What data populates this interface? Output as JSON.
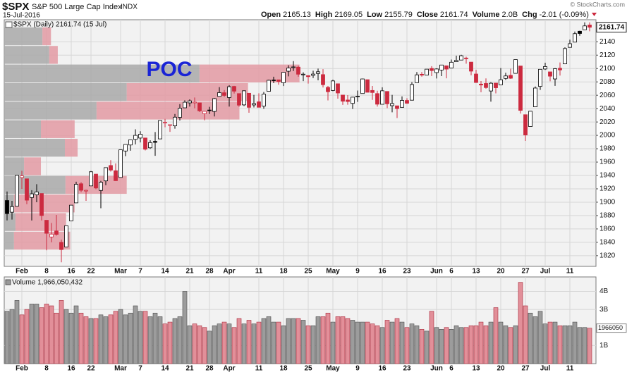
{
  "chart_data": {
    "type": "candlestick",
    "symbol": "$SPX",
    "name": "S&P 500 Large Cap Index",
    "exchange": "INDX",
    "date": "15-Jul-2016",
    "copyright": "© StockCharts.com",
    "quote": [
      {
        "label": "Open",
        "value": 2165.13
      },
      {
        "label": "High",
        "value": 2169.05
      },
      {
        "label": "Low",
        "value": 2155.79
      },
      {
        "label": "Close",
        "value": 2161.74
      },
      {
        "label": "Volume",
        "value": "2.0B"
      },
      {
        "label": "Chg",
        "value": "-2.01 (-0.09%)"
      }
    ],
    "legend": "$SPX (Daily) 2161.74 (15 Jul)",
    "annotation": "POC",
    "volume_legend": "Volume 1,966,050,432",
    "volume_last_label": "1966050",
    "up_color": "#000000",
    "down_color": "#cc2a3f",
    "grid": true,
    "categories": [
      null,
      null,
      null,
      "Feb",
      null,
      null,
      null,
      null,
      "8",
      null,
      null,
      null,
      null,
      "16",
      null,
      null,
      null,
      "22",
      null,
      null,
      null,
      null,
      null,
      "Mar",
      null,
      null,
      null,
      "7",
      null,
      null,
      null,
      null,
      "14",
      null,
      null,
      null,
      null,
      "21",
      null,
      null,
      null,
      "28",
      null,
      null,
      null,
      "Apr",
      null,
      null,
      null,
      null,
      null,
      "11",
      null,
      null,
      null,
      null,
      "18",
      null,
      null,
      null,
      null,
      "25",
      null,
      null,
      null,
      null,
      "May",
      null,
      null,
      null,
      null,
      "9",
      null,
      null,
      null,
      null,
      "16",
      null,
      null,
      null,
      null,
      "23",
      null,
      null,
      null,
      null,
      null,
      "Jun",
      null,
      null,
      "6",
      null,
      null,
      null,
      null,
      "13",
      null,
      null,
      null,
      null,
      "20",
      null,
      null,
      null,
      null,
      "27",
      null,
      null,
      null,
      "Jul",
      null,
      null,
      null,
      null,
      "11",
      null,
      null,
      null,
      null
    ],
    "open": [
      1902.5,
      1885,
      1894,
      1936.9,
      1935,
      1907,
      1911,
      1913,
      1873,
      1848,
      1857,
      1840,
      1833,
      1872,
      1899,
      1927.6,
      1916.7,
      1924.4,
      1942,
      1917.6,
      1931.9,
      1954.9,
      1947.1,
      1937,
      1976.6,
      1985.6,
      1994,
      1996,
      1996.1,
      1981.4,
      1990.97,
      1994.7,
      2019.3,
      2015.3,
      2014.2,
      2026.9,
      2041.2,
      2048.6,
      2048.6,
      2048.6,
      2032.5,
      2037.9,
      2035.8,
      2058.3,
      2063.8,
      2056.6,
      2073.2,
      2062.5,
      2045.6,
      2063,
      2045.5,
      2050.2,
      2043.7,
      2065.9,
      2082.9,
      2083.1,
      2078.8,
      2096,
      2101.5,
      2102.1,
      2091.5,
      2089.4,
      2089.8,
      2092.6,
      2090.9,
      2071.8,
      2067.2,
      2077.2,
      2060.3,
      2052.9,
      2047.8,
      2057.6,
      2062.6,
      2083.3,
      2067.2,
      2062.5,
      2046.5,
      2065.7,
      2044.4,
      2044.2,
      2041.9,
      2052.2,
      2052.6,
      2078.9,
      2091.4,
      2090.1,
      2100.1,
      2093.9,
      2097.7,
      2104.1,
      2100.8,
      2110.2,
      2112.7,
      2115.7,
      2109.6,
      2091.8,
      2076.7,
      2077.6,
      2066.4,
      2078.2,
      2075.6,
      2085.2,
      2089.8,
      2092.8,
      2103.8,
      2030.9,
      2013.2,
      2042.7,
      2073.2,
      2099.3,
      2095,
      2084.4,
      2100.4,
      2106.97,
      2131.7,
      2139.5,
      2155.8,
      2157.9,
      2165.13
    ],
    "high": [
      1916,
      1902,
      1940.2,
      1947,
      1935,
      1918,
      1927,
      1913,
      1873,
      1869,
      1881,
      1844,
      1864.8,
      1895.6,
      1930.7,
      1930,
      1918.8,
      1946.7,
      1942,
      1932,
      1951.8,
      1962.96,
      1958,
      1978.35,
      1986.5,
      1993.7,
      2009,
      2006.1,
      1996.1,
      1992.7,
      2005,
      2022.4,
      2024.6,
      2015.9,
      2032,
      2046.7,
      2052.4,
      2053.9,
      2056.6,
      2048.6,
      2036,
      2042.7,
      2055.9,
      2072.2,
      2067.9,
      2075.1,
      2074,
      2062.5,
      2067.3,
      2063,
      2060.6,
      2062.9,
      2065,
      2083.2,
      2087.8,
      2083.2,
      2094.7,
      2104.9,
      2111,
      2104.1,
      2094.3,
      2089.4,
      2096.7,
      2099.9,
      2099.1,
      2073.9,
      2083.4,
      2077.2,
      2060.3,
      2060.2,
      2057.7,
      2067,
      2084.9,
      2083.3,
      2073.9,
      2066.8,
      2071.9,
      2065.7,
      2060.6,
      2044.2,
      2058.4,
      2055.6,
      2079.7,
      2094.7,
      2094.7,
      2099.1,
      2103.5,
      2100.2,
      2105.3,
      2104.1,
      2113.4,
      2119.2,
      2120.6,
      2117.6,
      2109.6,
      2098.1,
      2081.3,
      2085.2,
      2079.6,
      2078.2,
      2100.7,
      2093.7,
      2099.7,
      2113.3,
      2103.8,
      2030.9,
      2036.1,
      2073.1,
      2098.9,
      2108.7,
      2095,
      2100.7,
      2109.1,
      2131.7,
      2143.2,
      2155.4,
      2156.5,
      2168.99,
      2169.05
    ],
    "low": [
      1872.8,
      1874,
      1894,
      1920,
      1897,
      1872.7,
      1900,
      1872.6,
      1828,
      1840,
      1850,
      1810,
      1833,
      1872,
      1899,
      1915,
      1902,
      1924.4,
      1919.4,
      1891,
      1925.4,
      1945.8,
      1931.8,
      1937,
      1968.8,
      1977,
      1986.5,
      1989.4,
      1977.4,
      1979.8,
      1969.4,
      1994.7,
      2012.1,
      2005.2,
      2010,
      2022.2,
      2041.2,
      2043.1,
      2040.6,
      2034.9,
      2022.5,
      2031.96,
      2028.3,
      2058.3,
      2057.5,
      2043.1,
      2062.6,
      2042.6,
      2043.8,
      2033.8,
      2041.7,
      2041.9,
      2039.7,
      2065.9,
      2078.1,
      2075.7,
      2073.7,
      2088.2,
      2096.3,
      2087.8,
      2081.2,
      2077.5,
      2085.8,
      2082.3,
      2071.6,
      2052.3,
      2066.1,
      2054.9,
      2045.6,
      2045.8,
      2039.5,
      2050,
      2062.6,
      2064.5,
      2053.1,
      2043.1,
      2046.5,
      2040.8,
      2034.5,
      2025.9,
      2041.9,
      2047.3,
      2052.6,
      2078.9,
      2087.9,
      2090.1,
      2088.7,
      2085.1,
      2088.6,
      2085.4,
      2100.8,
      2110.2,
      2112.7,
      2107.3,
      2089.9,
      2078.5,
      2064.6,
      2069.8,
      2050.4,
      2062.8,
      2075.6,
      2083,
      2084.4,
      2092.8,
      2032.6,
      1991.7,
      2013.2,
      2042.7,
      2068,
      2097.9,
      2080.9,
      2074,
      2089.4,
      2107,
      2131.7,
      2139.5,
      2149,
      2157.9,
      2155.79
    ],
    "close": [
      1882.95,
      1893.36,
      1940.24,
      1939.38,
      1903.03,
      1912.53,
      1915.45,
      1880.05,
      1853.44,
      1852.21,
      1851.86,
      1829.08,
      1864.78,
      1895.58,
      1926.82,
      1917.83,
      1917.78,
      1945.5,
      1921.27,
      1929.8,
      1951.7,
      1948.05,
      1932.23,
      1978.35,
      1986.45,
      1993.4,
      1999.99,
      2001.76,
      1979.26,
      1989.26,
      1989.57,
      2022.19,
      2019.64,
      2015.93,
      2027.22,
      2040.59,
      2049.58,
      2051.6,
      2049.8,
      2036.71,
      2035.94,
      2037.05,
      2055.01,
      2063.95,
      2059.74,
      2072.78,
      2066.13,
      2045.17,
      2066.66,
      2041.91,
      2047.6,
      2041.99,
      2061.72,
      2082.42,
      2082.78,
      2080.73,
      2094.34,
      2100.8,
      2102.4,
      2091.48,
      2091.58,
      2087.79,
      2091.7,
      2095.15,
      2075.81,
      2065.3,
      2081.43,
      2063.37,
      2051.12,
      2050.63,
      2057.14,
      2058.69,
      2084.39,
      2064.46,
      2064.11,
      2046.61,
      2066.66,
      2047.21,
      2047.63,
      2040.04,
      2052.32,
      2048.04,
      2076.06,
      2090.54,
      2090.1,
      2099.06,
      2096.95,
      2099.33,
      2105.26,
      2099.13,
      2109.41,
      2112.13,
      2119.12,
      2115.48,
      2096.07,
      2079.06,
      2075.32,
      2071.5,
      2077.99,
      2071.22,
      2083.25,
      2088.9,
      2085.45,
      2113.32,
      2037.41,
      2000.54,
      2036.09,
      2070.77,
      2098.86,
      2102.95,
      2088.55,
      2099.73,
      2097.9,
      2129.9,
      2137.16,
      2152.14,
      2152.43,
      2163.75,
      2161.74
    ],
    "volume": [
      2900000000.0,
      3000000000.0,
      3500000000.0,
      2700000000.0,
      3000000000.0,
      3300000000.0,
      3300000000.0,
      3100000000.0,
      3300000000.0,
      3200000000.0,
      2800000000.0,
      3500000000.0,
      3000000000.0,
      2800000000.0,
      3200000000.0,
      2800000000.0,
      2600000000.0,
      2500000000.0,
      2500000000.0,
      2700000000.0,
      2600000000.0,
      2700000000.0,
      2900000000.0,
      3000000000.0,
      2700000000.0,
      2800000000.0,
      3200000000.0,
      2900000000.0,
      2900000000.0,
      2600000000.0,
      2800000000.0,
      2600000000.0,
      2200000000.0,
      2300000000.0,
      2500000000.0,
      2600000000.0,
      4000000000.0,
      2100000000.0,
      2200000000.0,
      2100000000.0,
      2000000000.0,
      1800000000.0,
      2100000000.0,
      2200000000.0,
      2300000000.0,
      2200000000.0,
      2000000000.0,
      2500000000.0,
      2200000000.0,
      2400000000.0,
      2200000000.0,
      2300000000.0,
      2500000000.0,
      2600000000.0,
      2300000000.0,
      2300000000.0,
      2100000000.0,
      2500000000.0,
      2500000000.0,
      2500000000.0,
      2400000000.0,
      2100000000.0,
      2100000000.0,
      2600000000.0,
      2600000000.0,
      2800000000.0,
      2300000000.0,
      2600000000.0,
      2600000000.0,
      2500000000.0,
      2400000000.0,
      2300000000.0,
      2300000000.0,
      2300000000.0,
      2200000000.0,
      2100000000.0,
      2000000000.0,
      2400000000.0,
      2300000000.0,
      2500000000.0,
      2300000000.0,
      2000000000.0,
      2200000000.0,
      2100000000.0,
      1900000000.0,
      1800000000.0,
      2900000000.0,
      2000000000.0,
      1900000000.0,
      2000000000.0,
      1900000000.0,
      2100000000.0,
      2000000000.0,
      2000000000.0,
      2100000000.0,
      2100000000.0,
      2300000000.0,
      2100000000.0,
      2300000000.0,
      3100000000.0,
      2300000000.0,
      2100000000.0,
      2000000000.0,
      2100000000.0,
      4500000000.0,
      3200000000.0,
      2800000000.0,
      2600000000.0,
      2900000000.0,
      2200000000.0,
      2300000000.0,
      2300000000.0,
      2100000000.0,
      2100000000.0,
      2100000000.0,
      2300000000.0,
      2000000000.0,
      2000000000.0,
      1966050432
    ],
    "ylim": [
      1804,
      2173
    ],
    "yticks": [
      1820,
      1840,
      1860,
      1880,
      1900,
      1920,
      1940,
      1960,
      1980,
      2000,
      2020,
      2040,
      2060,
      2080,
      2100,
      2120,
      2140
    ],
    "volume_ylim": [
      0,
      4800000000.0
    ],
    "volume_yticks": [
      {
        "value": 1000000000.0,
        "label": "1B"
      },
      {
        "value": 3000000000.0,
        "label": "3B"
      },
      {
        "value": 4000000000.0,
        "label": "4B"
      }
    ],
    "volume_by_price": {
      "price_bins": [
        1828.6,
        1856.4,
        1884.2,
        1912,
        1939.8,
        1967.6,
        1995.4,
        2023.2,
        2050.9,
        2078.7,
        2106.5,
        2134.3,
        2162.1
      ],
      "up_volume": [
        3.3,
        3.8,
        3.3,
        20.7,
        6.7,
        20.5,
        12.4,
        31.2,
        41.4,
        66,
        15.2,
        12.9
      ],
      "down_volume": [
        19,
        17.1,
        20.5,
        20.7,
        5.7,
        4.3,
        11.4,
        48.3,
        41,
        33.8,
        2.9,
        2.9
      ],
      "xlim": [
        0,
        200
      ],
      "up_color": "#a9a9a9",
      "down_color": "#e39aa3"
    }
  }
}
